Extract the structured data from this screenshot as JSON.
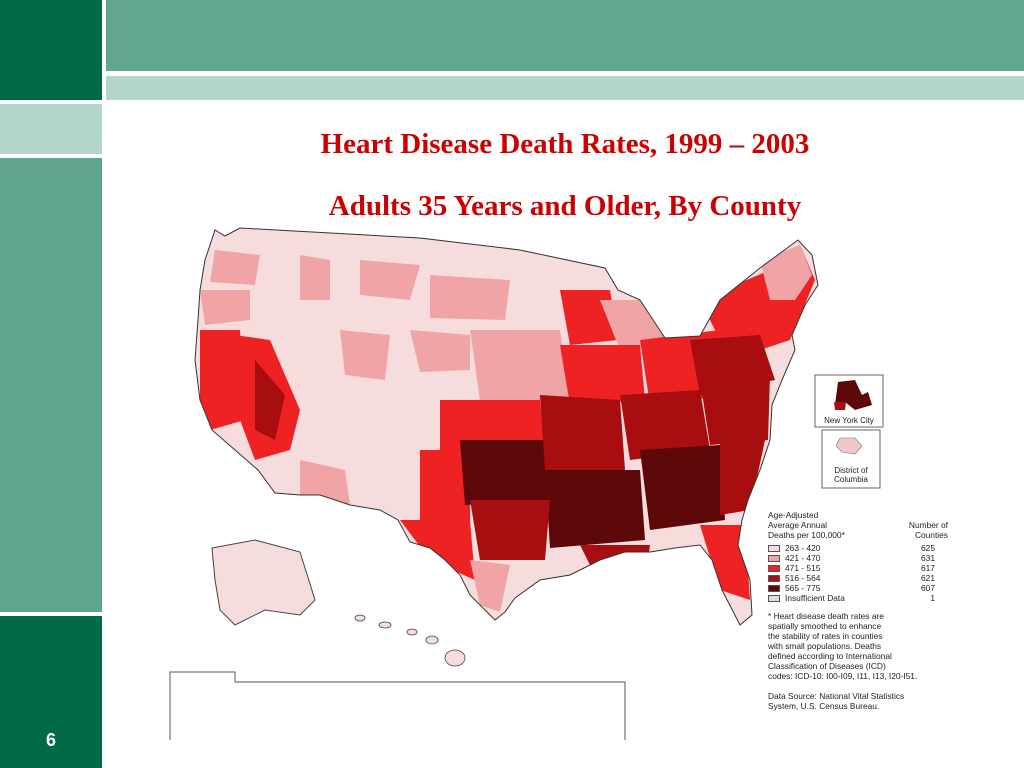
{
  "slide": {
    "title": "Heart Disease Death Rates, 1999 – 2003",
    "subtitle": "Adults 35 Years and Older, By County",
    "page_number": "6"
  },
  "colors": {
    "dark_green": "#006a45",
    "mid_green": "#5ea58c",
    "light_green": "#b3d5c9",
    "title_red": "#cc0000",
    "class1": "#f6dcdc",
    "class2": "#f0a4a6",
    "class3": "#ee2222",
    "class4": "#a80d10",
    "class5": "#5c0708",
    "nodata": "#dddddd"
  },
  "insets": {
    "nyc_label": "New York City",
    "dc_label_line1": "District of",
    "dc_label_line2": "Columbia"
  },
  "legend": {
    "heading_line1": "Age-Adjusted",
    "heading_line2": "Average Annual",
    "heading_line3": "Deaths per 100,000*",
    "count_heading_line1": "Number of",
    "count_heading_line2": "Counties",
    "classes": [
      {
        "label": "263 - 420",
        "count": "625",
        "color": "#f6dcdc"
      },
      {
        "label": "421 - 470",
        "count": "631",
        "color": "#f0a4a6"
      },
      {
        "label": "471 - 515",
        "count": "617",
        "color": "#ee2222"
      },
      {
        "label": "516 - 564",
        "count": "621",
        "color": "#a80d10"
      },
      {
        "label": "565 - 775",
        "count": "607",
        "color": "#5c0708"
      },
      {
        "label": "Insufficient Data",
        "count": "1",
        "color": "#dddddd"
      }
    ],
    "footnote_lines": [
      "* Heart disease death rates are",
      "spatially smoothed to enhance",
      "the stability of rates in counties",
      "with small populations. Deaths",
      "defined according to International",
      "Classification of Diseases (ICD)",
      "codes: ICD-10: I00-I09, I11, I13, I20-I51."
    ],
    "source_lines": [
      "Data Source: National Vital Statistics",
      "System, U.S. Census Bureau."
    ]
  }
}
